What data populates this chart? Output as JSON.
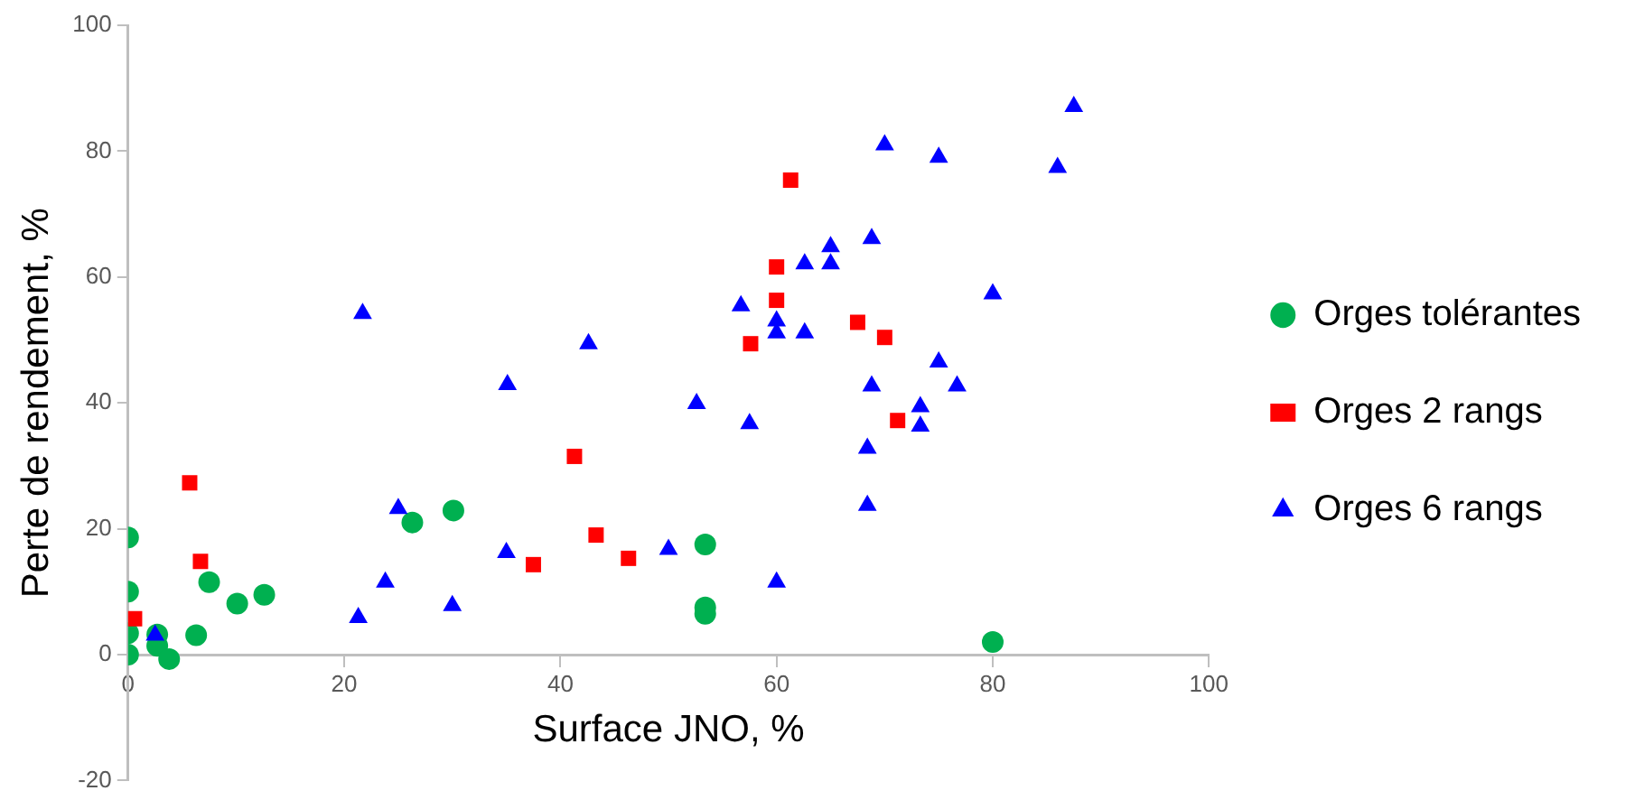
{
  "chart_data": {
    "type": "scatter",
    "xlabel": "Surface JNO, %",
    "ylabel": "Perte de rendement, %",
    "xlim": [
      0,
      100
    ],
    "xticks": [
      0,
      20,
      40,
      60,
      80,
      100
    ],
    "ylim": [
      -20,
      100
    ],
    "yticks": [
      -20,
      0,
      20,
      40,
      60,
      80,
      100
    ],
    "grid": false,
    "legend": "right",
    "series": [
      {
        "name": "Orges tolérantes",
        "color": "#00b050",
        "marker": "circle",
        "x": [
          0,
          0,
          0,
          0,
          2.7,
          2.7,
          3.8,
          6.3,
          7.5,
          10.1,
          12.6,
          26.3,
          30.1,
          53.4,
          53.4,
          53.4,
          80
        ],
        "values": [
          18.6,
          10,
          3.4,
          0,
          3.2,
          1.4,
          -0.7,
          3.1,
          11.5,
          8.1,
          9.5,
          21,
          22.9,
          17.5,
          7.5,
          6.5,
          2
        ]
      },
      {
        "name": "Orges 2 rangs",
        "color": "#ff0000",
        "marker": "square",
        "x": [
          0.6,
          5.7,
          6.7,
          37.5,
          41.3,
          43.3,
          46.3,
          57.6,
          60,
          60,
          61.3,
          67.5,
          70,
          71.2
        ],
        "values": [
          5.7,
          27.3,
          14.8,
          14.3,
          31.5,
          19,
          15.3,
          49.4,
          56.3,
          61.6,
          75.4,
          52.8,
          50.4,
          37.2
        ]
      },
      {
        "name": "Orges 6 rangs",
        "color": "#0000ff",
        "marker": "triangle",
        "x": [
          2.5,
          21.3,
          21.7,
          23.8,
          25,
          30,
          35,
          35.1,
          42.6,
          50,
          52.6,
          56.7,
          57.5,
          60,
          60,
          60,
          62.6,
          62.6,
          65,
          65,
          68.4,
          68.4,
          68.8,
          68.8,
          70,
          73.3,
          73.3,
          75,
          75,
          76.7,
          80,
          86,
          87.5
        ],
        "values": [
          3.1,
          5.9,
          54.2,
          11.5,
          23.2,
          7.8,
          16.2,
          42.9,
          49.4,
          16.7,
          39.9,
          55.4,
          36.7,
          11.5,
          51.1,
          53,
          51.1,
          62.1,
          62.1,
          64.8,
          23.7,
          32.8,
          42.7,
          66.1,
          81,
          36.3,
          39.4,
          46.5,
          79,
          42.7,
          57.3,
          77.4,
          87.1
        ]
      }
    ]
  }
}
